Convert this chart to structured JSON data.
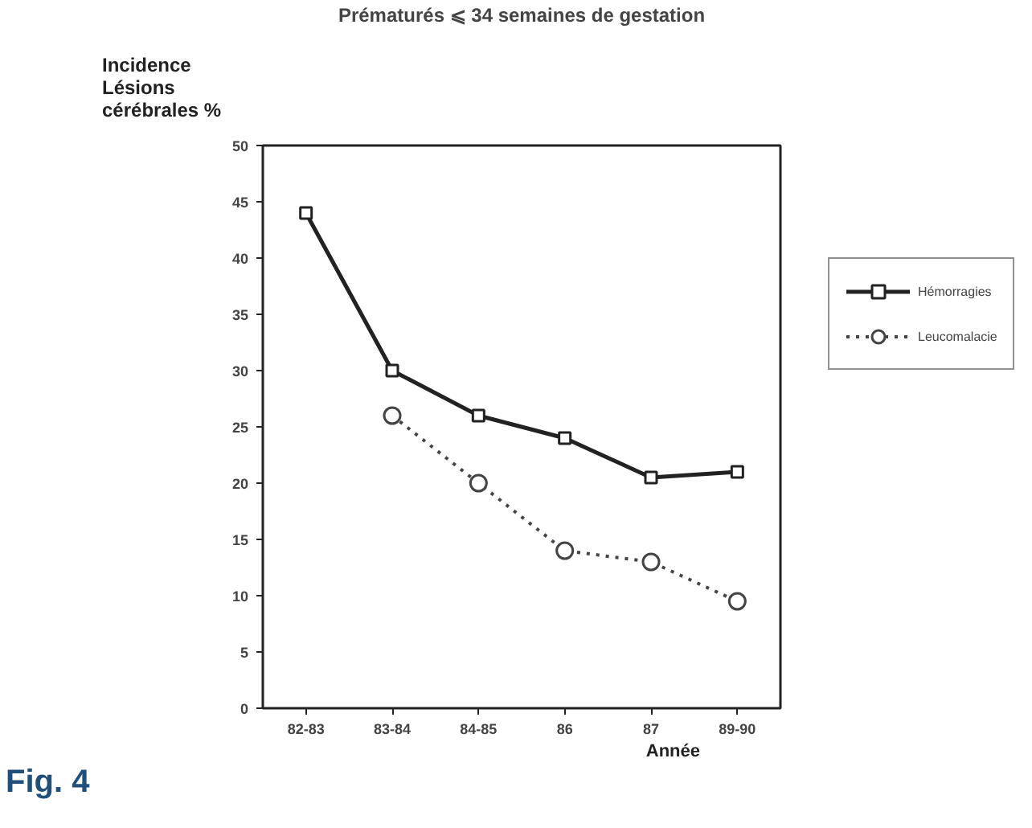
{
  "chart_data": {
    "type": "line",
    "title": "Prématurés ⩽ 34 semaines de gestation",
    "ylabel": "Incidence\nLésions\ncérébrales  %",
    "xlabel": "Année",
    "categories": [
      "82-83",
      "83-84",
      "84-85",
      "86",
      "87",
      "89-90"
    ],
    "series": [
      {
        "name": "Hémorragies",
        "color": "#222222",
        "values": [
          44,
          30,
          26,
          24,
          20.5,
          21
        ],
        "marker": "square",
        "line_style": "solid"
      },
      {
        "name": "Leucomalacie",
        "color": "#444444",
        "values": [
          null,
          26,
          20,
          14,
          13,
          9.5
        ],
        "marker": "circle",
        "line_style": "dotted"
      }
    ],
    "ylim": [
      0,
      50
    ],
    "yticks": [
      0,
      5,
      10,
      15,
      20,
      25,
      30,
      35,
      40,
      45,
      50
    ],
    "grid": false,
    "legend": "right",
    "annotations": [
      "Fig. 4"
    ]
  }
}
